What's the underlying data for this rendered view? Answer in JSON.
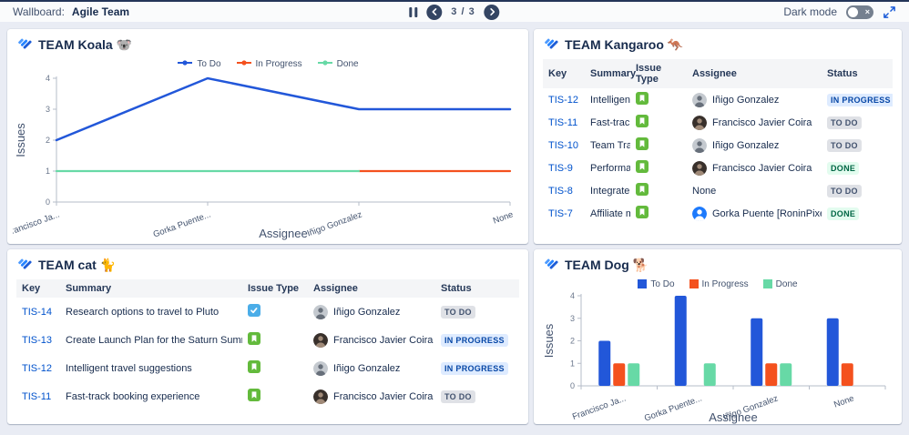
{
  "header": {
    "wallboard_label": "Wallboard:",
    "wallboard_name": "Agile Team",
    "page_indicator": "3 / 3",
    "dark_mode_label": "Dark mode"
  },
  "series_colors": {
    "To Do": "#2257d9",
    "In Progress": "#f4511e",
    "Done": "#67d9a6"
  },
  "status_styles": {
    "IN PROGRESS": {
      "bg": "#deebff",
      "fg": "#0747a6"
    },
    "TO DO": {
      "bg": "#dfe1e6",
      "fg": "#42526e"
    },
    "DONE": {
      "bg": "#e3fcef",
      "fg": "#006644"
    }
  },
  "issue_type_colors": {
    "story": "#63ba3c",
    "task": "#4bade8"
  },
  "avatar_colors": {
    "inigo": {
      "bg": "#c4c9cf",
      "fg": "#676f7a"
    },
    "francisco": {
      "bg": "#38302b",
      "fg": "#a08a78"
    },
    "gorka": {
      "bg": "#1d7afc",
      "fg": "#ffffff"
    }
  },
  "panels": {
    "koala": {
      "title": "TEAM Koala 🐨"
    },
    "kangaroo": {
      "title": "TEAM Kangaroo 🦘",
      "table": {
        "headers": [
          "Key",
          "Summary",
          "Issue Type",
          "Assignee",
          "Status"
        ],
        "rows": [
          {
            "key": "TIS-12",
            "summary": "Intelligent travel suggestions",
            "type": "story",
            "assignee": "Iñigo Gonzalez",
            "avatar": "inigo",
            "status": "IN PROGRESS"
          },
          {
            "key": "TIS-11",
            "summary": "Fast-track booking experience",
            "type": "story",
            "assignee": "Francisco Javier Coira",
            "avatar": "francisco",
            "status": "TO DO"
          },
          {
            "key": "TIS-10",
            "summary": "Team Travel Mobile Apps",
            "type": "story",
            "assignee": "Iñigo Gonzalez",
            "avatar": "inigo",
            "status": "TO DO"
          },
          {
            "key": "TIS-9",
            "summary": "Performance level-up",
            "type": "story",
            "assignee": "Francisco Javier Coira",
            "avatar": "francisco",
            "status": "DONE"
          },
          {
            "key": "TIS-8",
            "summary": "Integrate partner travel sites",
            "type": "story",
            "assignee": "None",
            "avatar": "none",
            "status": "TO DO"
          },
          {
            "key": "TIS-7",
            "summary": "Affiliate marketing program",
            "type": "story",
            "assignee": "Gorka Puente [RoninPixels]",
            "avatar": "gorka",
            "status": "DONE"
          }
        ]
      }
    },
    "cat": {
      "title": "TEAM cat 🐈",
      "table": {
        "headers": [
          "Key",
          "Summary",
          "Issue Type",
          "Assignee",
          "Status"
        ],
        "rows": [
          {
            "key": "TIS-14",
            "summary": "Research options to travel to Pluto",
            "type": "task",
            "assignee": "Iñigo Gonzalez",
            "avatar": "inigo",
            "status": "TO DO"
          },
          {
            "key": "TIS-13",
            "summary": "Create Launch Plan for the Saturn Summer Sizzle",
            "type": "story",
            "assignee": "Francisco Javier Coira",
            "avatar": "francisco",
            "status": "IN PROGRESS"
          },
          {
            "key": "TIS-12",
            "summary": "Intelligent travel suggestions",
            "type": "story",
            "assignee": "Iñigo Gonzalez",
            "avatar": "inigo",
            "status": "IN PROGRESS"
          },
          {
            "key": "TIS-11",
            "summary": "Fast-track booking experience",
            "type": "story",
            "assignee": "Francisco Javier Coira",
            "avatar": "francisco",
            "status": "TO DO"
          }
        ]
      }
    },
    "dog": {
      "title": "TEAM Dog 🐕"
    }
  },
  "chart_data": [
    {
      "panel": "TEAM Koala",
      "type": "line",
      "categories": [
        "Francisco Ja...",
        "Gorka Puente...",
        "Iñigo Gonzalez",
        "None"
      ],
      "series": [
        {
          "name": "To Do",
          "values": [
            2,
            4,
            3,
            3
          ]
        },
        {
          "name": "In Progress",
          "values": [
            null,
            null,
            1,
            1
          ]
        },
        {
          "name": "Done",
          "values": [
            1,
            1,
            1,
            null
          ]
        }
      ],
      "title": "",
      "xlabel": "Assignee",
      "ylabel": "Issues",
      "ylim": [
        0,
        4
      ],
      "yticks": [
        0,
        1,
        2,
        3,
        4
      ],
      "grid": false,
      "legend_position": "top"
    },
    {
      "panel": "TEAM Dog",
      "type": "bar",
      "categories": [
        "Francisco Ja...",
        "Gorka Puente...",
        "Iñigo Gonzalez",
        "None"
      ],
      "series": [
        {
          "name": "To Do",
          "values": [
            2,
            4,
            3,
            3
          ]
        },
        {
          "name": "In Progress",
          "values": [
            1,
            0,
            1,
            1
          ]
        },
        {
          "name": "Done",
          "values": [
            1,
            1,
            1,
            0
          ]
        }
      ],
      "title": "",
      "xlabel": "Assignee",
      "ylabel": "Issues",
      "ylim": [
        0,
        4
      ],
      "yticks": [
        0,
        1,
        2,
        3,
        4
      ],
      "grid": false,
      "legend_position": "top"
    }
  ]
}
